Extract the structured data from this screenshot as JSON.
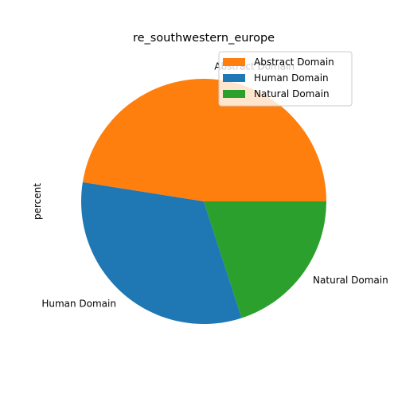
{
  "chart_data": {
    "type": "pie",
    "title": "re_southwestern_europe",
    "ylabel": "percent",
    "categories": [
      "Abstract Domain",
      "Human Domain",
      "Natural Domain"
    ],
    "values": [
      47.5,
      32.5,
      20.0
    ],
    "colors": [
      "#ff7f0e",
      "#1f77b4",
      "#2ca02c"
    ],
    "start_angle_deg": 0,
    "direction": "counterclockwise",
    "legend": {
      "position": "top-right",
      "entries": [
        "Abstract Domain",
        "Human Domain",
        "Natural Domain"
      ]
    }
  }
}
